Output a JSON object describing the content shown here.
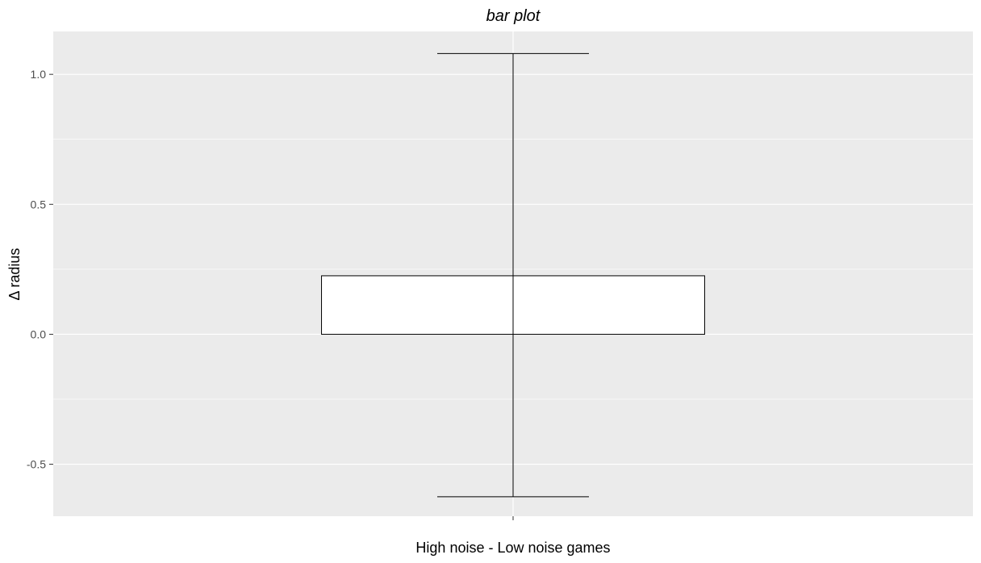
{
  "chart_data": {
    "type": "bar",
    "title": "bar plot",
    "xlabel": "High noise - Low noise games",
    "ylabel": "Δ radius",
    "categories": [
      ""
    ],
    "values": [
      0.225
    ],
    "error_bars": [
      {
        "lower": -0.625,
        "upper": 1.08
      }
    ],
    "ylim": [
      -0.7,
      1.165
    ],
    "y_ticks": [
      -0.5,
      0.0,
      0.5,
      1.0
    ],
    "y_tick_labels": [
      "-0.5",
      "0.0",
      "0.5",
      "1.0"
    ],
    "y_minor_ticks": [
      -0.25,
      0.25,
      0.75
    ],
    "grid": true,
    "legend": "none",
    "colors": {
      "panel_background": "#ebebeb",
      "grid": "#ffffff",
      "bar_fill": "#ffffff",
      "bar_outline": "#000000",
      "errorbar": "#000000"
    }
  }
}
